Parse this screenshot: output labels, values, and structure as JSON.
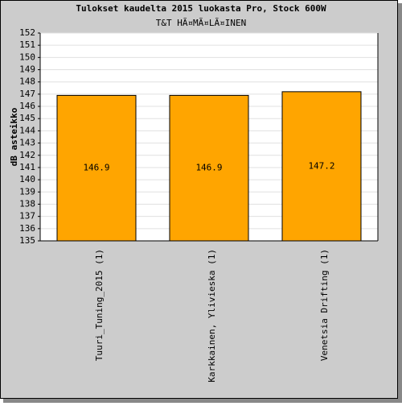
{
  "chart_data": {
    "type": "bar",
    "title": "Tulokset kaudelta 2015 luokasta Pro, Stock 600W",
    "subtitle": "T&T HÃ¤MÃ¤LÃ¤INEN",
    "y_label": "dB asteikko",
    "categories": [
      "Tuuri_Tuning_2015 (1)",
      "Karkkainen, Ylivieska (1)",
      "Venetsia Drifting (1)"
    ],
    "values": [
      146.9,
      146.9,
      147.2
    ],
    "color": "#ffa500",
    "ylim": [
      135,
      152
    ],
    "yticks": [
      135,
      136,
      137,
      138,
      139,
      140,
      141,
      142,
      143,
      144,
      145,
      146,
      147,
      148,
      149,
      150,
      151,
      152
    ],
    "grid": true
  }
}
